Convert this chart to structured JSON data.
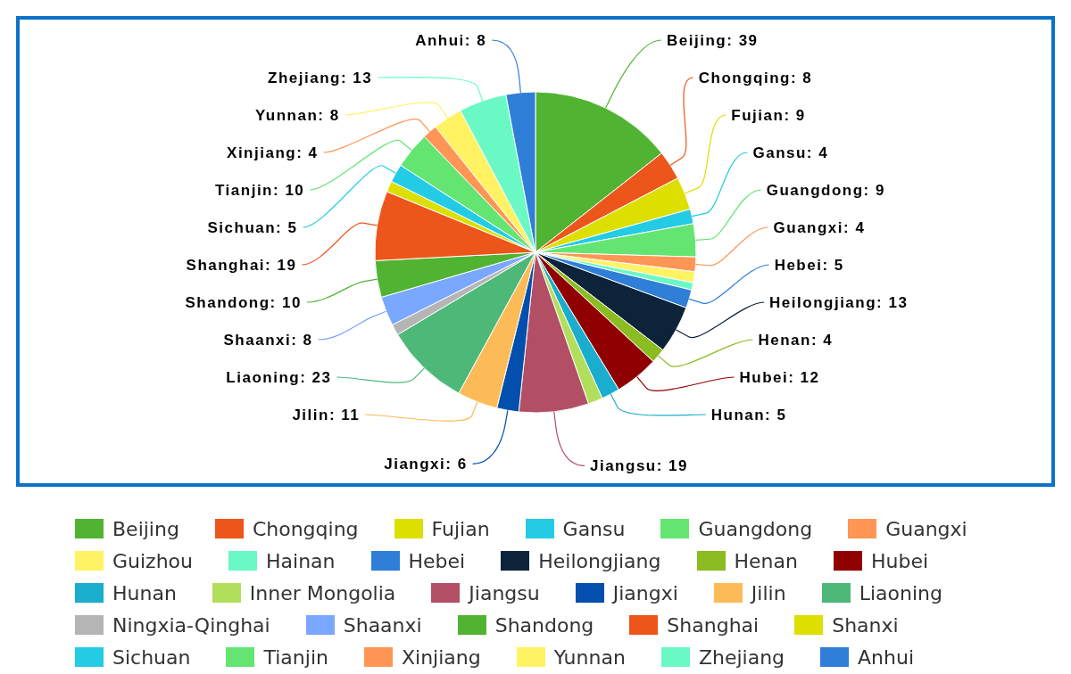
{
  "chart_data": {
    "type": "pie",
    "categories": [
      "Beijing",
      "Chongqing",
      "Fujian",
      "Gansu",
      "Guangdong",
      "Guangxi",
      "Guizhou",
      "Hainan",
      "Hebei",
      "Heilongjiang",
      "Henan",
      "Hubei",
      "Hunan",
      "Inner Mongolia",
      "Jiangsu",
      "Jiangxi",
      "Jilin",
      "Liaoning",
      "Ningxia-Qinghai",
      "Shaanxi",
      "Shandong",
      "Shanghai",
      "Shanxi",
      "Sichuan",
      "Tianjin",
      "Xinjiang",
      "Yunnan",
      "Zhejiang",
      "Anhui"
    ],
    "values": [
      39,
      8,
      9,
      4,
      9,
      4,
      3,
      2,
      5,
      13,
      4,
      12,
      5,
      4,
      19,
      6,
      11,
      23,
      3,
      8,
      10,
      19,
      3,
      5,
      10,
      4,
      8,
      13,
      8
    ],
    "colors": [
      "#50b432",
      "#ed561b",
      "#dddf00",
      "#24cbe5",
      "#64e572",
      "#ff9655",
      "#fff263",
      "#6af9c4",
      "#2f7ed8",
      "#0d233a",
      "#8bbc21",
      "#910000",
      "#1aadce",
      "#b2df5b",
      "#b24f64",
      "#034fad",
      "#fdbb57",
      "#4db878",
      "#b5b5b5",
      "#7aa7ff",
      "#50b432",
      "#ed561b",
      "#dddf00",
      "#24cbe5",
      "#64e572",
      "#ff9655",
      "#fff263",
      "#6af9c4",
      "#2f7ed8"
    ],
    "value_labels": [
      "Beijing: 39",
      "Chongqing: 8",
      "Fujian: 9",
      "Gansu: 4",
      "Guangdong: 9",
      "Guangxi: 4",
      null,
      null,
      "Hebei: 5",
      "Heilongjiang: 13",
      "Henan: 4",
      "Hubei: 12",
      "Hunan: 5",
      null,
      "Jiangsu: 19",
      "Jiangxi: 6",
      "Jilin: 11",
      "Liaoning: 23",
      null,
      "Shaanxi: 8",
      "Shandong: 10",
      "Shanghai: 19",
      null,
      "Sichuan: 5",
      "Tianjin: 10",
      "Xinjiang: 4",
      "Yunnan: 8",
      "Zhejiang: 13",
      "Anhui: 8"
    ],
    "legend": "bottom"
  }
}
